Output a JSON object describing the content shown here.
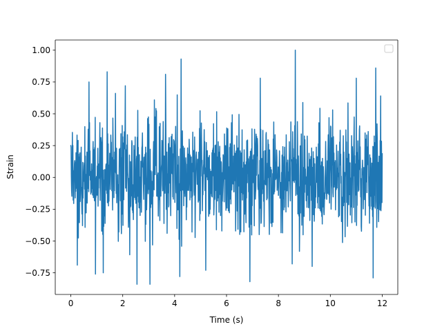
{
  "chart_data": {
    "type": "line",
    "title": "",
    "xlabel": "Time (s)",
    "ylabel": "Strain",
    "xlim": [
      -0.6,
      12.6
    ],
    "ylim": [
      -0.92,
      1.08
    ],
    "x_ticks": [
      0,
      2,
      4,
      6,
      8,
      10,
      12
    ],
    "x_tick_labels": [
      "0",
      "2",
      "4",
      "6",
      "8",
      "10",
      "12"
    ],
    "y_ticks": [
      -0.75,
      -0.5,
      -0.25,
      0.0,
      0.25,
      0.5,
      0.75,
      1.0
    ],
    "y_tick_labels": [
      "−0.75",
      "−0.50",
      "−0.25",
      "0.00",
      "0.25",
      "0.50",
      "0.75",
      "1.00"
    ],
    "grid": false,
    "legend": {
      "placement": "upper-right",
      "entries": []
    },
    "series": [
      {
        "color": "#1f77b4",
        "x_range": [
          0,
          12
        ],
        "sample_count": 1200,
        "typical_band": [
          -0.35,
          0.38
        ],
        "peaks": [
          {
            "x": 8.65,
            "y": 1.0
          },
          {
            "x": 4.25,
            "y": 0.93
          },
          {
            "x": 11.75,
            "y": 0.86
          },
          {
            "x": 1.4,
            "y": 0.83
          },
          {
            "x": 3.65,
            "y": 0.81
          },
          {
            "x": 7.3,
            "y": 0.78
          },
          {
            "x": 11.0,
            "y": 0.78
          },
          {
            "x": 0.7,
            "y": 0.75
          },
          {
            "x": 2.1,
            "y": 0.72
          }
        ],
        "troughs": [
          {
            "x": 2.55,
            "y": -0.84
          },
          {
            "x": 3.05,
            "y": -0.84
          },
          {
            "x": 6.9,
            "y": -0.82
          },
          {
            "x": 4.2,
            "y": -0.78
          },
          {
            "x": 11.65,
            "y": -0.79
          },
          {
            "x": 0.95,
            "y": -0.76
          },
          {
            "x": 1.25,
            "y": -0.75
          },
          {
            "x": 5.2,
            "y": -0.73
          },
          {
            "x": 9.3,
            "y": -0.7
          },
          {
            "x": 0.25,
            "y": -0.69
          }
        ]
      }
    ]
  }
}
